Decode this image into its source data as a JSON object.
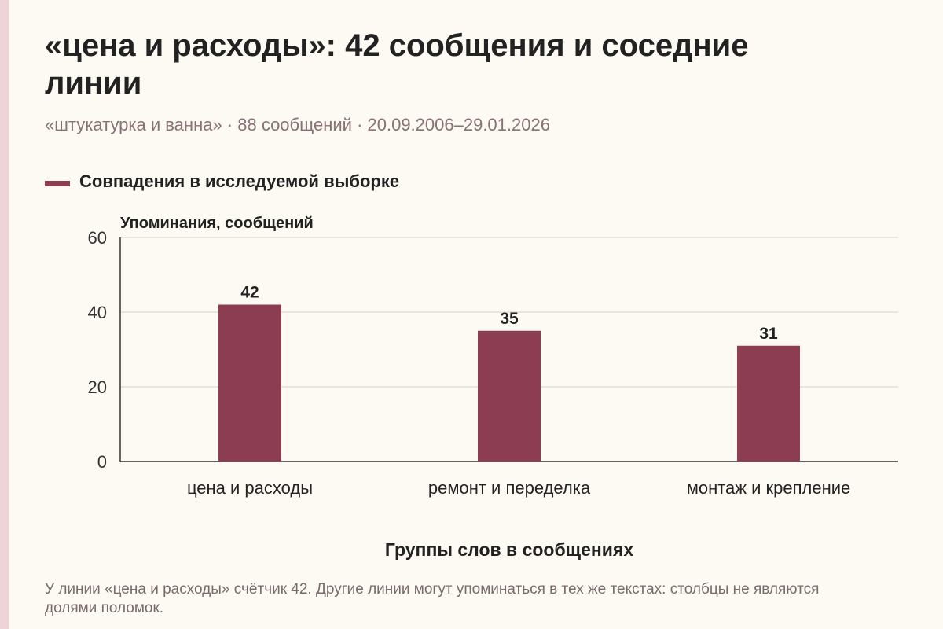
{
  "title": "«цена и расходы»: 42 сообщения и соседние линии",
  "subtitle": "«штукатурка и ванна» · 88 сообщений · 20.09.2006–29.01.2026",
  "note": "У линии «цена и расходы» счётчик 42. Другие линии могут упоминаться в тех же текстах: столбцы не являются долями поломок.",
  "colors": {
    "bar": "#8d3d52",
    "accent_stripe": "#ecd4d9"
  },
  "chart_data": {
    "type": "bar",
    "categories": [
      "цена и расходы",
      "ремонт и переделка",
      "монтаж и крепление"
    ],
    "series": [
      {
        "name": "Совпадения в исследуемой выборке",
        "values": [
          42,
          35,
          31
        ]
      }
    ],
    "ylabel": "Упоминания, сообщений",
    "xlabel": "Группы слов в сообщениях",
    "ylim": [
      0,
      60
    ],
    "yticks": [
      0,
      20,
      40,
      60
    ],
    "grid": true,
    "legend": "top-left",
    "data_labels": true
  }
}
